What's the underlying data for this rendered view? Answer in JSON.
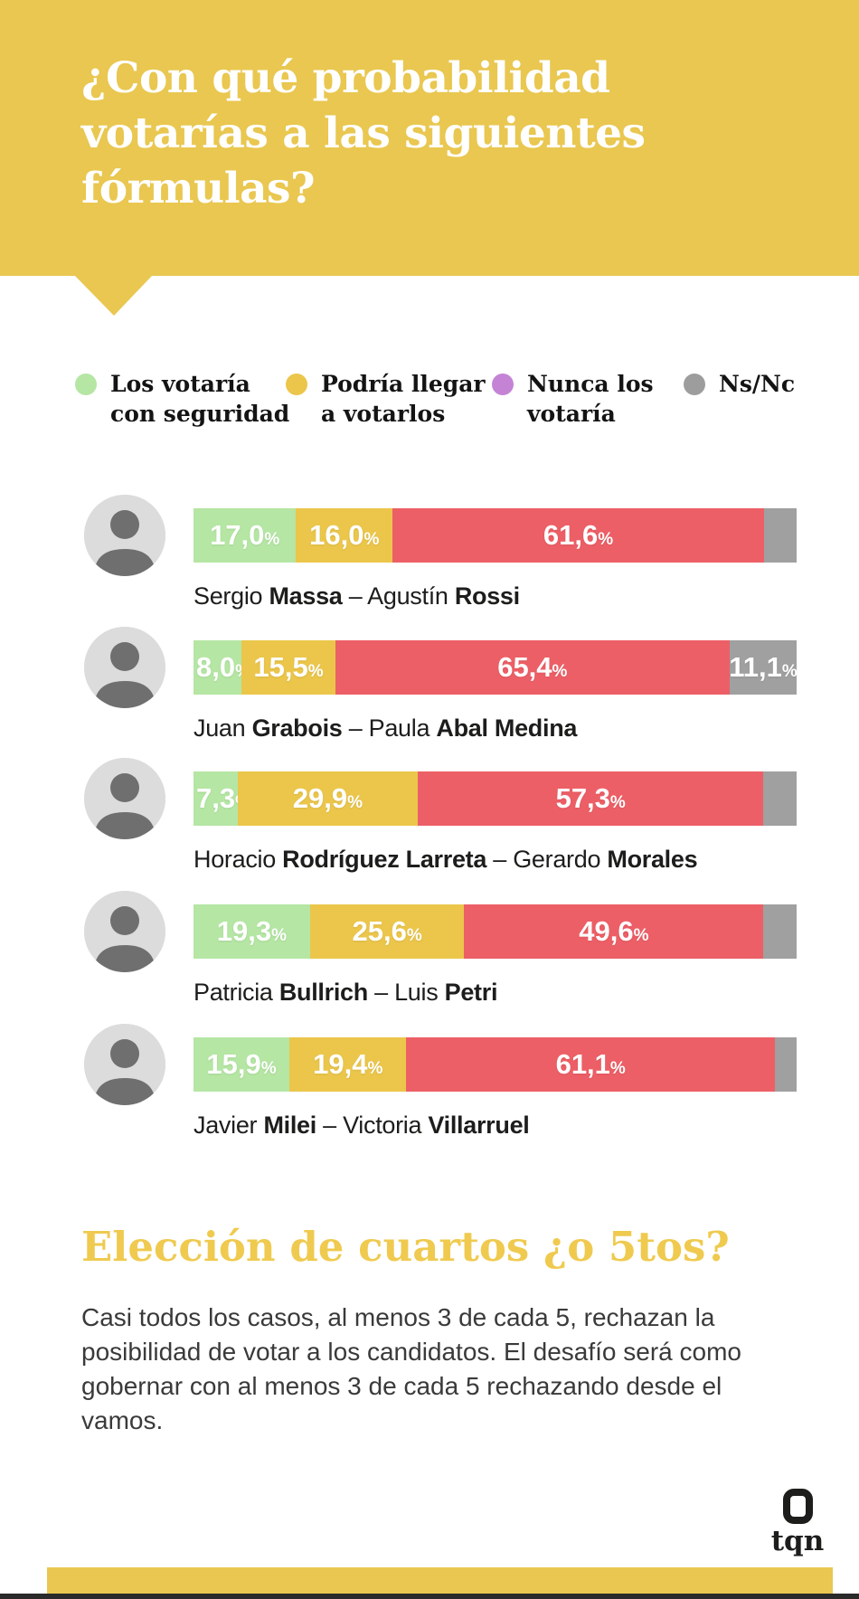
{
  "header": {
    "title": "¿Con qué probabilidad votarías a las siguientes fórmulas?",
    "bg_color": "#E9C750",
    "text_color": "#FFFFFF"
  },
  "legend": {
    "items": [
      {
        "lines": [
          "Los votaría",
          "con seguridad"
        ],
        "color": "#B5E6A4"
      },
      {
        "lines": [
          "Podría llegar",
          "a votarlos"
        ],
        "color": "#EBC64B"
      },
      {
        "lines": [
          "Nunca los",
          "votaría"
        ],
        "color": "#C583D6"
      },
      {
        "lines": [
          "Ns/Nc"
        ],
        "color": "#9D9D9D"
      }
    ]
  },
  "chart_data": {
    "type": "bar",
    "variant": "horizontal-stacked",
    "unit": "percent",
    "title": "¿Con qué probabilidad votarías a las siguientes fórmulas?",
    "series_names": [
      "Los votaría con seguridad",
      "Podría llegar a votarlos",
      "Nunca los votaría",
      "Ns/Nc"
    ],
    "segment_colors": [
      "#B5E6A4",
      "#EBC64B",
      "#ED5F66",
      "#A0A0A0"
    ],
    "percent_suffix": "%",
    "rows": [
      {
        "name_parts": [
          {
            "t": "Sergio ",
            "b": false
          },
          {
            "t": "Massa",
            "b": true
          },
          {
            "t": " – Agustín ",
            "b": false
          },
          {
            "t": "Rossi",
            "b": true
          }
        ],
        "values": [
          17.0,
          16.0,
          61.6,
          5.4
        ],
        "labels": [
          "17,0",
          "16,0",
          "61,6",
          ""
        ]
      },
      {
        "name_parts": [
          {
            "t": "Juan ",
            "b": false
          },
          {
            "t": "Grabois",
            "b": true
          },
          {
            "t": " – Paula ",
            "b": false
          },
          {
            "t": "Abal Medina",
            "b": true
          }
        ],
        "values": [
          8.0,
          15.5,
          65.4,
          11.1
        ],
        "labels": [
          "8,0",
          "15,5",
          "65,4",
          "11,1"
        ]
      },
      {
        "name_parts": [
          {
            "t": "Horacio ",
            "b": false
          },
          {
            "t": "Rodríguez Larreta",
            "b": true
          },
          {
            "t": " – Gerardo ",
            "b": false
          },
          {
            "t": "Morales",
            "b": true
          }
        ],
        "values": [
          7.3,
          29.9,
          57.3,
          5.5
        ],
        "labels": [
          "7,3",
          "29,9",
          "57,3",
          ""
        ]
      },
      {
        "name_parts": [
          {
            "t": "Patricia ",
            "b": false
          },
          {
            "t": "Bullrich",
            "b": true
          },
          {
            "t": " – Luis ",
            "b": false
          },
          {
            "t": "Petri",
            "b": true
          }
        ],
        "values": [
          19.3,
          25.6,
          49.6,
          5.5
        ],
        "labels": [
          "19,3",
          "25,6",
          "49,6",
          ""
        ]
      },
      {
        "name_parts": [
          {
            "t": "Javier ",
            "b": false
          },
          {
            "t": "Milei",
            "b": true
          },
          {
            "t": " – Victoria ",
            "b": false
          },
          {
            "t": "Villarruel",
            "b": true
          }
        ],
        "values": [
          15.9,
          19.4,
          61.1,
          3.6
        ],
        "labels": [
          "15,9",
          "19,4",
          "61,1",
          ""
        ]
      }
    ]
  },
  "section": {
    "heading": "Elección de cuartos ¿o 5tos?",
    "body": "Casi todos los casos, al menos 3 de cada 5, rechazan la posibilidad de votar a los candidatos. El desafío será como gobernar con al menos 3 de cada 5 rechazando desde el vamos."
  },
  "footer": {
    "logo_text": "tqn",
    "bar_color": "#E9C750",
    "strip_color": "#2A2A2A"
  }
}
